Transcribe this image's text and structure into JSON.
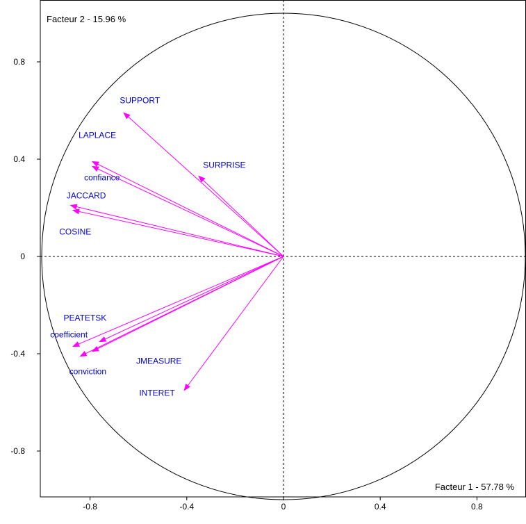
{
  "chart_data": {
    "type": "scatter",
    "subtype": "correlation-circle",
    "factor_x_label": "Facteur 1  -  57.78 %",
    "factor_y_label": "Facteur 2  -  15.96 %",
    "xlim": [
      -1,
      1
    ],
    "ylim": [
      -1,
      1
    ],
    "x_ticks": [
      {
        "value": -0.8,
        "label": "-0.8"
      },
      {
        "value": -0.4,
        "label": "-0.4"
      },
      {
        "value": 0,
        "label": "0"
      },
      {
        "value": 0.4,
        "label": "0.4"
      },
      {
        "value": 0.8,
        "label": "0.8"
      }
    ],
    "y_ticks": [
      {
        "value": 0.8,
        "label": "0.8"
      },
      {
        "value": 0.4,
        "label": "0.4"
      },
      {
        "value": 0,
        "label": "0"
      },
      {
        "value": -0.4,
        "label": "-0.4"
      },
      {
        "value": -0.8,
        "label": "-0.8"
      }
    ],
    "unit_circle": true,
    "axes_dashed": true,
    "arrow_color": "#ff00ff",
    "label_color": "#0000cc",
    "variables": [
      {
        "name": "SUPPORT",
        "x": -0.66,
        "y": 0.59
      },
      {
        "name": "LAPLACE",
        "x": -0.79,
        "y": 0.39
      },
      {
        "name": "confiance",
        "x": -0.79,
        "y": 0.37
      },
      {
        "name": "SURPRISE",
        "x": -0.35,
        "y": 0.33
      },
      {
        "name": "JACCARD",
        "x": -0.88,
        "y": 0.21
      },
      {
        "name": "COSINE",
        "x": -0.87,
        "y": 0.19
      },
      {
        "name": "PEATETSK",
        "x": -0.76,
        "y": -0.35
      },
      {
        "name": "coefficient",
        "x": -0.87,
        "y": -0.37
      },
      {
        "name": "JMEASURE",
        "x": -0.79,
        "y": -0.39
      },
      {
        "name": "conviction",
        "x": -0.84,
        "y": -0.41
      },
      {
        "name": "INTERET",
        "x": -0.41,
        "y": -0.55
      }
    ]
  }
}
